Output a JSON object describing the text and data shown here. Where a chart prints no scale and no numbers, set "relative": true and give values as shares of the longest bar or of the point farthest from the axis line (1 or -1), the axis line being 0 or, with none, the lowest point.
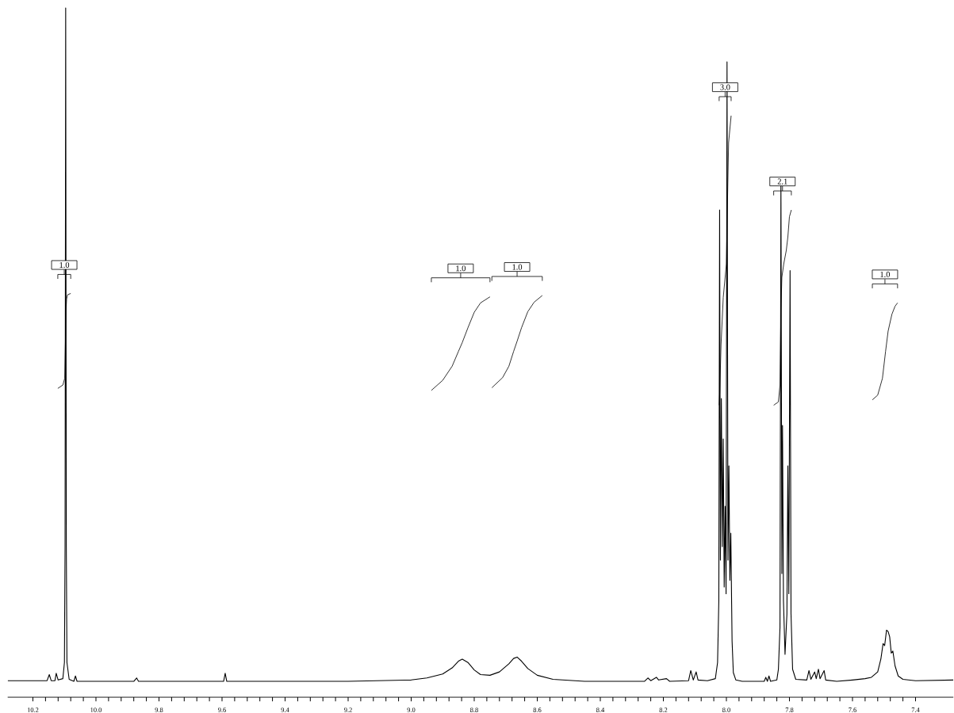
{
  "chart_data": {
    "type": "line",
    "relative": true,
    "tick_labels": "x",
    "xlim": [
      10.28,
      7.28
    ],
    "xticks": [
      10.2,
      {
        "value": 10,
        "label": "10.0"
      },
      9.8,
      9.6,
      9.4,
      9.2,
      {
        "value": 9,
        "label": "9.0"
      },
      8.8,
      8.6,
      8.4,
      8.2,
      {
        "value": 8,
        "label": "8.0"
      },
      7.8,
      7.6,
      7.4
    ],
    "series": [
      {
        "color": "#000000",
        "x": [
          10.28,
          10.2,
          10.155,
          10.148,
          10.142,
          10.13,
          10.126,
          10.12,
          10.105,
          10.1,
          10.098,
          10.096,
          10.094,
          10.092,
          10.085,
          10.07,
          10.065,
          10.06,
          9.88,
          9.871,
          9.865,
          9.595,
          9.59,
          9.585,
          9.2,
          9.0,
          8.95,
          8.9,
          8.87,
          8.85,
          8.838,
          8.82,
          8.8,
          8.78,
          8.75,
          8.72,
          8.69,
          8.675,
          8.664,
          8.65,
          8.63,
          8.6,
          8.55,
          8.45,
          8.26,
          8.249,
          8.24,
          8.222,
          8.215,
          8.19,
          8.18,
          8.12,
          8.113,
          8.105,
          8.096,
          8.09,
          8.06,
          8.035,
          8.028,
          8.024,
          8.0215,
          8.019,
          8.016,
          8.013,
          8.01,
          8.007,
          8.004,
          8.001,
          7.998,
          7.995,
          7.992,
          7.989,
          7.986,
          7.982,
          7.978,
          7.97,
          7.95,
          7.88,
          7.875,
          7.87,
          7.865,
          7.86,
          7.84,
          7.835,
          7.83,
          7.827,
          7.824,
          7.822,
          7.819,
          7.814,
          7.808,
          7.805,
          7.802,
          7.798,
          7.795,
          7.79,
          7.78,
          7.745,
          7.738,
          7.732,
          7.72,
          7.715,
          7.708,
          7.703,
          7.69,
          7.685,
          7.65,
          7.6,
          7.56,
          7.54,
          7.52,
          7.51,
          7.503,
          7.498,
          7.492,
          7.487,
          7.482,
          7.477,
          7.472,
          7.465,
          7.455,
          7.44,
          7.4,
          7.28
        ],
        "values": [
          0.001,
          0.001,
          0.001,
          0.01,
          0.001,
          0.001,
          0.012,
          0.002,
          0.004,
          0.028,
          0.2,
          1.0,
          0.2,
          0.028,
          0.003,
          0,
          0.008,
          0,
          0,
          0.005,
          0,
          0,
          0.012,
          0,
          0,
          0.002,
          0.005,
          0.011,
          0.02,
          0.03,
          0.033,
          0.028,
          0.017,
          0.01,
          0.009,
          0.014,
          0.026,
          0.034,
          0.036,
          0.03,
          0.019,
          0.009,
          0.003,
          0,
          0,
          0.005,
          0.001,
          0.006,
          0.002,
          0.004,
          0,
          0.001,
          0.016,
          0.002,
          0.014,
          0.002,
          0.001,
          0.004,
          0.028,
          0.12,
          0.7,
          0.18,
          0.42,
          0.2,
          0.36,
          0.14,
          0.26,
          0.13,
          0.92,
          0.18,
          0.32,
          0.15,
          0.22,
          0.06,
          0.013,
          0.002,
          0,
          0,
          0.006,
          0,
          0.008,
          0,
          0.002,
          0.018,
          0.08,
          0.74,
          0.16,
          0.38,
          0.12,
          0.04,
          0.1,
          0.32,
          0.13,
          0.61,
          0.1,
          0.018,
          0.003,
          0.002,
          0.016,
          0.003,
          0.014,
          0.004,
          0.018,
          0.004,
          0.016,
          0.002,
          0,
          0.002,
          0.004,
          0.006,
          0.014,
          0.033,
          0.056,
          0.053,
          0.076,
          0.074,
          0.066,
          0.042,
          0.045,
          0.023,
          0.008,
          0.003,
          0.001,
          0.002
        ]
      },
      {
        "color": "#000000",
        "x": [
          10.121,
          10.105,
          10.099,
          10.097,
          10.095,
          10.093,
          10.09,
          10.08
        ],
        "values": [
          0.435,
          0.44,
          0.45,
          0.5,
          0.55,
          0.568,
          0.574,
          0.576
        ]
      },
      {
        "color": "#000000",
        "x": [
          8.936,
          8.9,
          8.87,
          8.85,
          8.838,
          8.82,
          8.8,
          8.78,
          8.75
        ],
        "values": [
          0.432,
          0.447,
          0.468,
          0.49,
          0.503,
          0.525,
          0.548,
          0.562,
          0.571
        ]
      },
      {
        "color": "#000000",
        "x": [
          8.744,
          8.71,
          8.69,
          8.675,
          8.664,
          8.65,
          8.63,
          8.61,
          8.584
        ],
        "values": [
          0.436,
          0.451,
          0.468,
          0.49,
          0.505,
          0.525,
          0.549,
          0.563,
          0.573
        ]
      },
      {
        "color": "#000000",
        "x": [
          8.023,
          8.021,
          8.017,
          8.01,
          8.0,
          7.997,
          7.993,
          7.985
        ],
        "values": [
          0.41,
          0.43,
          0.5,
          0.57,
          0.62,
          0.7,
          0.8,
          0.84
        ]
      },
      {
        "color": "#000000",
        "x": [
          7.85,
          7.835,
          7.83,
          7.827,
          7.824,
          7.818,
          7.81,
          7.805,
          7.8,
          7.794
        ],
        "values": [
          0.41,
          0.415,
          0.44,
          0.55,
          0.6,
          0.62,
          0.64,
          0.66,
          0.69,
          0.7
        ]
      },
      {
        "color": "#000000",
        "x": [
          7.537,
          7.52,
          7.505,
          7.495,
          7.487,
          7.475,
          7.465,
          7.457
        ],
        "values": [
          0.418,
          0.425,
          0.45,
          0.49,
          0.52,
          0.545,
          0.557,
          0.562
        ]
      }
    ],
    "annotations": [
      "1.0",
      "1.0",
      "1.0",
      "3.0",
      "2.1",
      "1.0"
    ]
  }
}
